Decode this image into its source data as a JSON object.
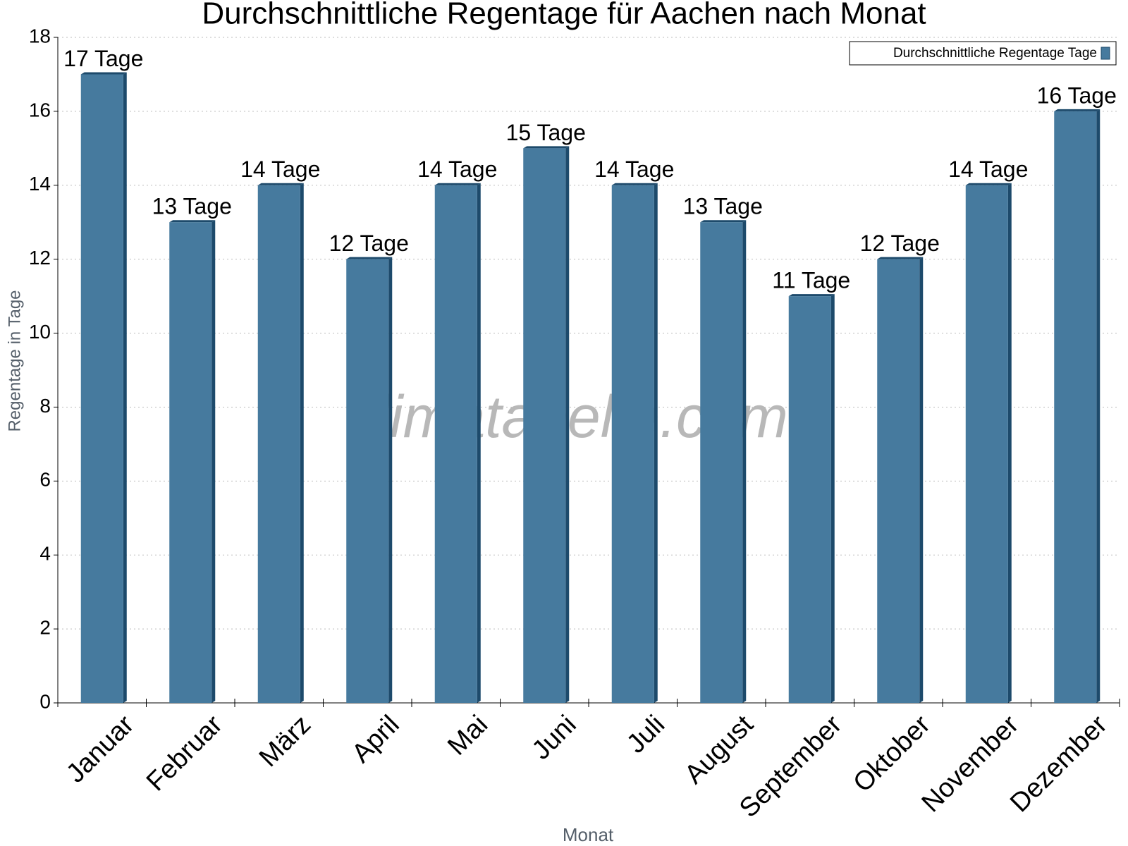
{
  "chart_data": {
    "type": "bar",
    "title": "Durchschnittliche Regentage für Aachen nach Monat",
    "x_label": "Monat",
    "y_label": "Regentage in Tage",
    "watermark": "klimatabelle.com",
    "categories": [
      "Januar",
      "Februar",
      "März",
      "April",
      "Mai",
      "Juni",
      "Juli",
      "August",
      "September",
      "Oktober",
      "November",
      "Dezember"
    ],
    "series": [
      {
        "name": "Durchschnittliche Regentage Tage",
        "color": "#467a9e",
        "values": [
          17,
          13,
          14,
          12,
          14,
          15,
          14,
          13,
          11,
          12,
          14,
          16
        ],
        "value_labels": [
          "17 Tage",
          "13 Tage",
          "14 Tage",
          "12 Tage",
          "14 Tage",
          "15 Tage",
          "14 Tage",
          "13 Tage",
          "11 Tage",
          "12 Tage",
          "14 Tage",
          "16 Tage"
        ]
      }
    ],
    "ylim": [
      0,
      18
    ],
    "yticks": [
      0,
      2,
      4,
      6,
      8,
      10,
      12,
      14,
      16,
      18
    ],
    "grid": true,
    "legend": "top-right"
  }
}
